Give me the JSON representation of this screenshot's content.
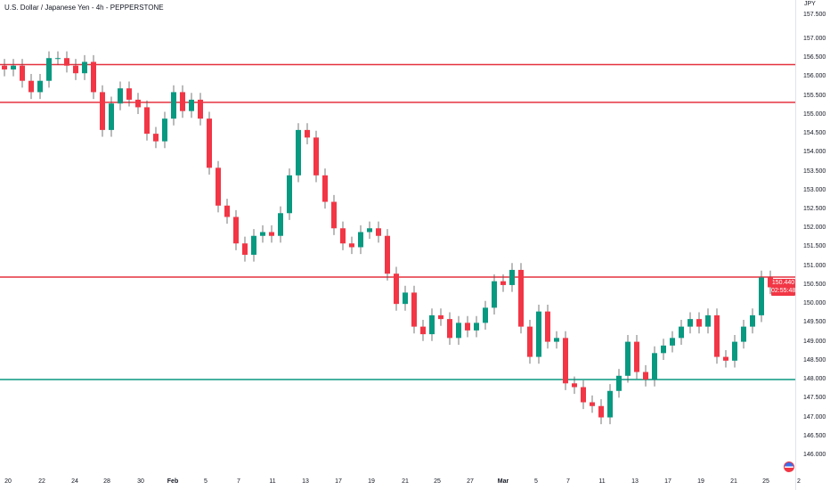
{
  "header": {
    "title": "U.S. Dollar / Japanese Yen - 4h - PEPPERSTONE"
  },
  "price_axis": {
    "currency": "JPY"
  },
  "last_price": {
    "value": "150.440",
    "countdown": "02:55:48"
  },
  "colors": {
    "up": "#089981",
    "down": "#f23645",
    "resistance": "#e5323f",
    "support": "#089981"
  },
  "chart_data": {
    "type": "candlestick",
    "title": "U.S. Dollar / Japanese Yen - 4h - PEPPERSTONE",
    "ylim": [
      145.85,
      157.55
    ],
    "y_ticks": [
      "157.500",
      "157.000",
      "156.500",
      "156.000",
      "155.500",
      "155.000",
      "154.500",
      "154.000",
      "153.500",
      "153.000",
      "152.500",
      "152.000",
      "151.500",
      "151.000",
      "150.500",
      "150.000",
      "149.500",
      "149.000",
      "148.500",
      "148.000",
      "147.500",
      "147.000",
      "146.500",
      "146.000"
    ],
    "x_ticks": [
      "20",
      "22",
      "24",
      "28",
      "30",
      "Feb",
      "5",
      "7",
      "11",
      "13",
      "17",
      "19",
      "21",
      "25",
      "27",
      "Mar",
      "5",
      "7",
      "11",
      "13",
      "17",
      "19",
      "21",
      "25",
      "2"
    ],
    "close": [
      156.2,
      156.3,
      155.9,
      155.6,
      155.9,
      156.5,
      156.5,
      156.3,
      156.1,
      156.4,
      155.6,
      154.6,
      155.3,
      155.7,
      155.4,
      155.2,
      154.5,
      154.3,
      154.9,
      155.6,
      155.1,
      155.4,
      154.9,
      153.6,
      152.6,
      152.3,
      151.6,
      151.3,
      151.8,
      151.9,
      151.8,
      152.4,
      153.4,
      154.6,
      154.4,
      153.4,
      152.7,
      152.0,
      151.6,
      151.5,
      151.9,
      152.0,
      151.8,
      150.8,
      150.0,
      150.3,
      149.4,
      149.2,
      149.7,
      149.6,
      149.1,
      149.5,
      149.3,
      149.5,
      149.9,
      150.6,
      150.5,
      150.9,
      149.4,
      148.6,
      149.8,
      149.0,
      149.1,
      147.9,
      147.8,
      147.4,
      147.3,
      147.0,
      147.7,
      148.1,
      149.0,
      148.2,
      148.0,
      148.7,
      148.9,
      149.1,
      149.4,
      149.6,
      149.4,
      149.7,
      148.6,
      148.5,
      149.0,
      149.4,
      149.7,
      150.7,
      150.44
    ],
    "horizontal_lines": [
      {
        "price": 156.33,
        "role": "resistance"
      },
      {
        "price": 155.33,
        "role": "resistance"
      },
      {
        "price": 150.71,
        "role": "resistance"
      },
      {
        "price": 148.0,
        "role": "support"
      }
    ],
    "grid": false
  }
}
